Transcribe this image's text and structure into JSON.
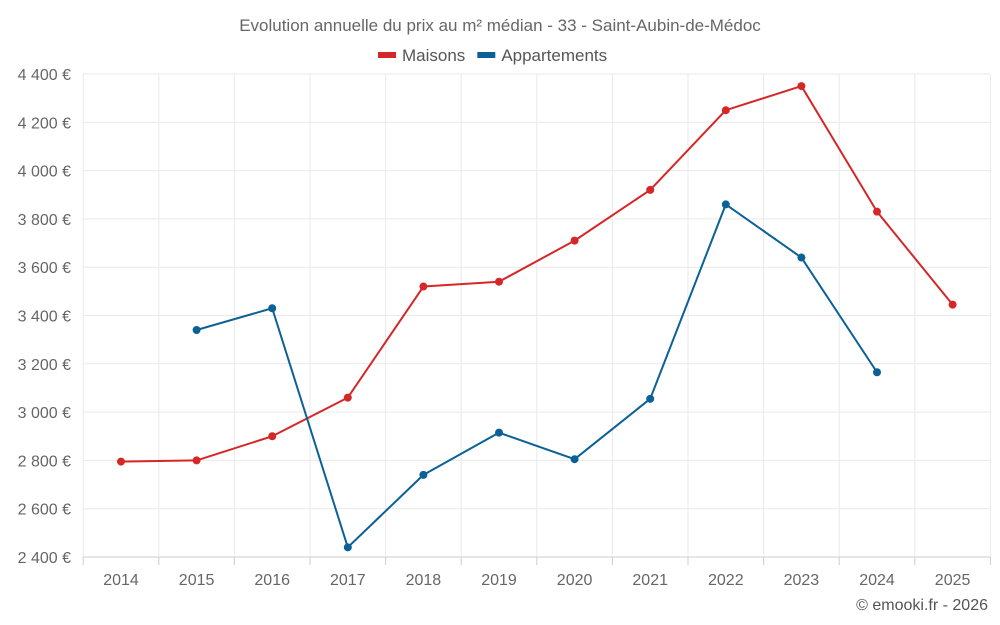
{
  "chart_data": {
    "type": "line",
    "title": "Evolution annuelle du prix au m² médian - 33 - Saint-Aubin-de-Médoc",
    "xlabel": "",
    "ylabel": "",
    "categories": [
      "2014",
      "2015",
      "2016",
      "2017",
      "2018",
      "2019",
      "2020",
      "2021",
      "2022",
      "2023",
      "2024",
      "2025"
    ],
    "ylim": [
      2400,
      4400
    ],
    "yticks": [
      2400,
      2600,
      2800,
      3000,
      3200,
      3400,
      3600,
      3800,
      4000,
      4200,
      4400
    ],
    "ytick_labels": [
      "2 400 €",
      "2 600 €",
      "2 800 €",
      "3 000 €",
      "3 200 €",
      "3 400 €",
      "3 600 €",
      "3 800 €",
      "4 000 €",
      "4 200 €",
      "4 400 €"
    ],
    "grid": true,
    "legend_position": "top-center",
    "series": [
      {
        "name": "Maisons",
        "color": "#d62728",
        "values": [
          2795,
          2800,
          2900,
          3060,
          3520,
          3540,
          3710,
          3920,
          4250,
          4350,
          3830,
          3445
        ]
      },
      {
        "name": "Appartements",
        "color": "#0b6196",
        "values": [
          null,
          3340,
          3430,
          2440,
          2740,
          2915,
          2805,
          3055,
          3860,
          3640,
          3165,
          null
        ]
      }
    ]
  },
  "credit": "© emooki.fr - 2026"
}
